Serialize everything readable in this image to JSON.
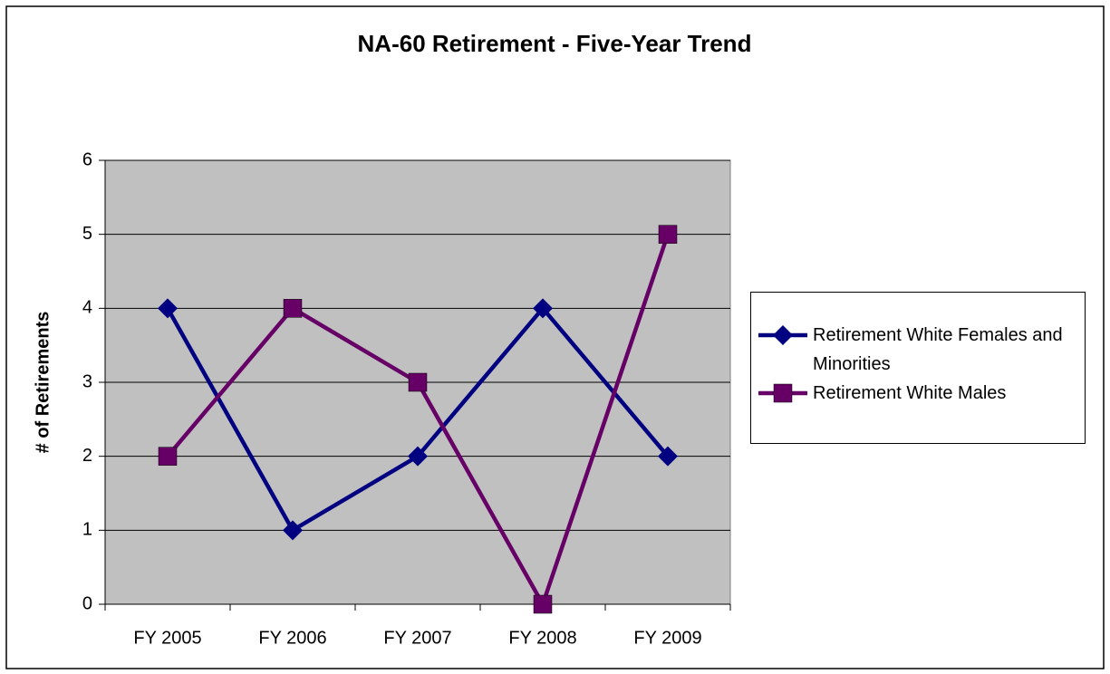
{
  "chart_data": {
    "type": "line",
    "title": "NA-60 Retirement - Five-Year Trend",
    "y_label": "# of Retirements",
    "categories": [
      "FY 2005",
      "FY 2006",
      "FY 2007",
      "FY 2008",
      "FY 2009"
    ],
    "series": [
      {
        "name": "Retirement White Females and Minorities",
        "color": "#000080",
        "marker": "diamond",
        "values": [
          4,
          1,
          2,
          4,
          2
        ]
      },
      {
        "name": "Retirement White Males",
        "color": "#660066",
        "marker": "square",
        "values": [
          2,
          4,
          3,
          0,
          5
        ]
      }
    ],
    "ylim": [
      0,
      6
    ],
    "yticks": [
      0,
      1,
      2,
      3,
      4,
      5,
      6
    ],
    "grid": true,
    "legend": "right"
  }
}
